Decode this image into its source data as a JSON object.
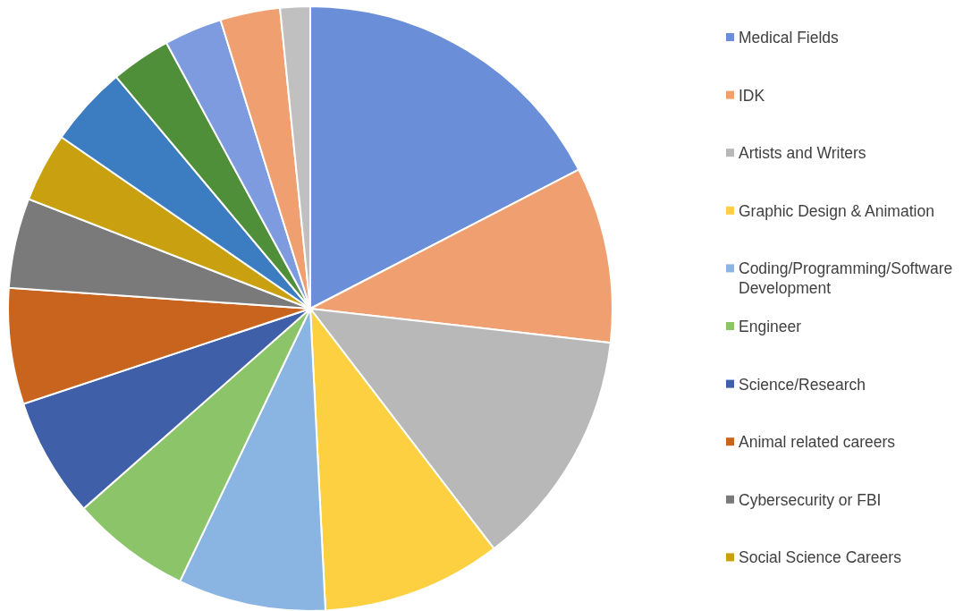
{
  "chart_data": {
    "type": "pie",
    "categories": [
      "Medical Fields",
      "IDK",
      "Artists and Writers",
      "Graphic Design & Animation",
      "Coding/Programming/Software Development",
      "Engineer",
      "Science/Research",
      "Animal related careers",
      "Cybersecurity or FBI",
      "Social Science Careers",
      null,
      null,
      null,
      null,
      null
    ],
    "values": [
      17.4,
      9.4,
      12.8,
      9.6,
      7.9,
      6.4,
      6.4,
      6.2,
      4.8,
      3.7,
      4.3,
      3.2,
      3.1,
      3.2,
      1.6
    ],
    "colors": [
      "#6a8fd8",
      "#f0a070",
      "#b8b8b8",
      "#fcd040",
      "#8ab4e2",
      "#8cc46a",
      "#3f5fa8",
      "#c8641e",
      "#7a7a7a",
      "#c9a010",
      "#3c7cc0",
      "#4f8f3a",
      "#7e9be0",
      "#f0a070",
      "#c0c0c0"
    ],
    "legend": "right"
  }
}
